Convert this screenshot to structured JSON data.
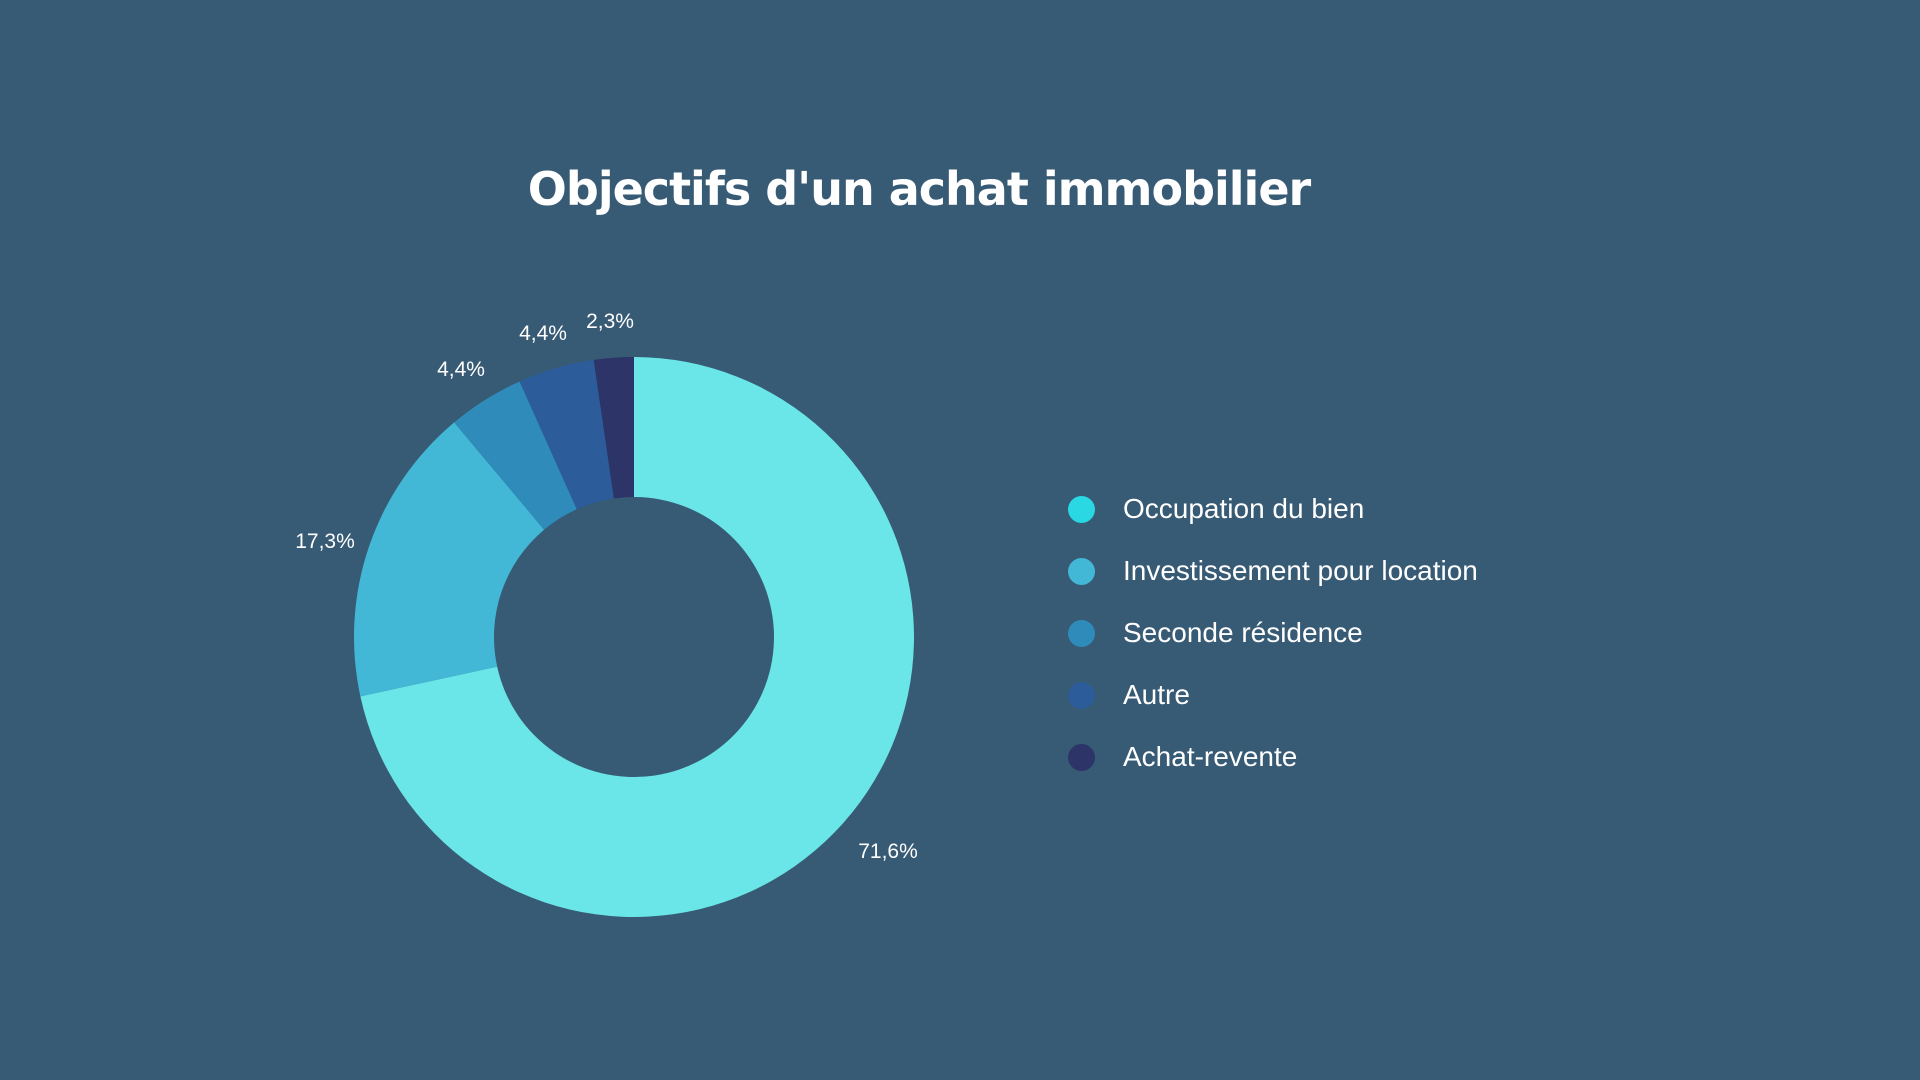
{
  "chart_data": {
    "type": "pie",
    "variant": "donut",
    "title": "Objectifs d'un achat immobilier",
    "categories": [
      "Occupation du bien",
      "Investissement pour location",
      "Seconde résidence",
      "Autre",
      "Achat-revente"
    ],
    "values": [
      71.6,
      17.3,
      4.4,
      4.4,
      2.3
    ],
    "labels": [
      "71,6%",
      "17,3%",
      "4,4%",
      "4,4%",
      "2,3%"
    ],
    "slice_colors": [
      "#6ae5e8",
      "#43b8d6",
      "#2e8bba",
      "#2c5d9a",
      "#2c3468"
    ],
    "legend_colors": [
      "#2ad8e3",
      "#43b8d6",
      "#2e8bba",
      "#2c5d9a",
      "#2c3468"
    ],
    "legend_position": "right",
    "start_angle": "top, clockwise"
  },
  "colors": {
    "background": "#375a75",
    "text": "#ffffff"
  }
}
